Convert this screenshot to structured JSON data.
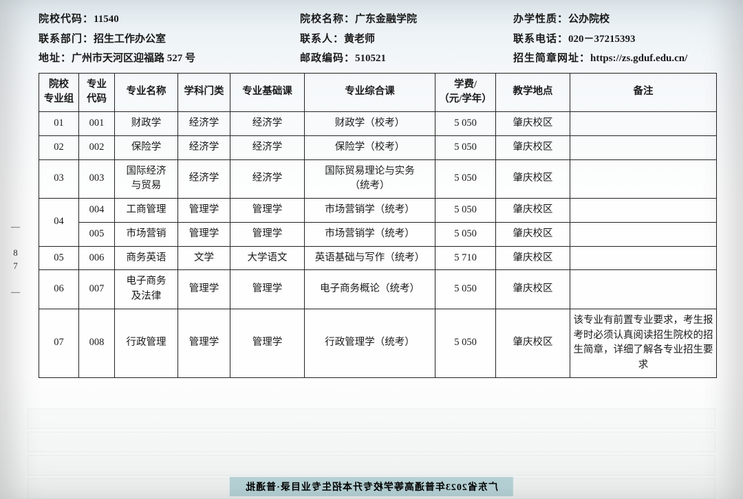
{
  "header": {
    "school_code_label": "院校代码：",
    "school_code": "11540",
    "school_name_label": "院校名称：",
    "school_name": "广东金融学院",
    "school_type_label": "办学性质：",
    "school_type": "公办院校",
    "dept_label": "联系部门：",
    "dept": "招生工作办公室",
    "contact_label": "联系人：",
    "contact": "黄老师",
    "phone_label": "联系电话：",
    "phone": "020－37215393",
    "addr_label": "地址：",
    "addr": "广州市天河区迎福路 527 号",
    "zip_label": "邮政编码：",
    "zip": "510521",
    "brochure_label": "招生简章网址：",
    "brochure": "https://zs.gduf.edu.cn/"
  },
  "columns": {
    "group": "院校\n专业组",
    "major_code": "专业\n代码",
    "major_name": "专业名称",
    "discipline": "学科门类",
    "basic_course": "专业基础课",
    "comp_course": "专业综合课",
    "fee": "学费/\n（元/学年）",
    "location": "教学地点",
    "note": "备注"
  },
  "rows": [
    {
      "group": "01",
      "code": "001",
      "name": "财政学",
      "disc": "经济学",
      "basic": "经济学",
      "comp": "财政学（校考）",
      "fee": "5 050",
      "loc": "肇庆校区",
      "note": ""
    },
    {
      "group": "02",
      "code": "002",
      "name": "保险学",
      "disc": "经济学",
      "basic": "经济学",
      "comp": "保险学（校考）",
      "fee": "5 050",
      "loc": "肇庆校区",
      "note": ""
    },
    {
      "group": "03",
      "code": "003",
      "name": "国际经济\n与贸易",
      "disc": "经济学",
      "basic": "经济学",
      "comp": "国际贸易理论与实务\n（统考）",
      "fee": "5 050",
      "loc": "肇庆校区",
      "note": ""
    },
    {
      "group": "04",
      "code": "004",
      "name": "工商管理",
      "disc": "管理学",
      "basic": "管理学",
      "comp": "市场营销学（统考）",
      "fee": "5 050",
      "loc": "肇庆校区",
      "note": "",
      "rowspan_group": 2
    },
    {
      "group": "",
      "code": "005",
      "name": "市场营销",
      "disc": "管理学",
      "basic": "管理学",
      "comp": "市场营销学（统考）",
      "fee": "5 050",
      "loc": "肇庆校区",
      "note": ""
    },
    {
      "group": "05",
      "code": "006",
      "name": "商务英语",
      "disc": "文学",
      "basic": "大学语文",
      "comp": "英语基础与写作（统考）",
      "fee": "5 710",
      "loc": "肇庆校区",
      "note": ""
    },
    {
      "group": "06",
      "code": "007",
      "name": "电子商务\n及法律",
      "disc": "管理学",
      "basic": "管理学",
      "comp": "电子商务概论（统考）",
      "fee": "5 050",
      "loc": "肇庆校区",
      "note": ""
    },
    {
      "group": "07",
      "code": "008",
      "name": "行政管理",
      "disc": "管理学",
      "basic": "管理学",
      "comp": "行政管理学（统考）",
      "fee": "5 050",
      "loc": "肇庆校区",
      "note": "该专业有前置专业要求，考生报考时必须认真阅读招生院校的招生简章，详细了解各专业招生要求"
    }
  ],
  "side_page": "— 87 —",
  "footer_strip": "广东省2023年普通高等学校专升本招生专业目录·普通批"
}
